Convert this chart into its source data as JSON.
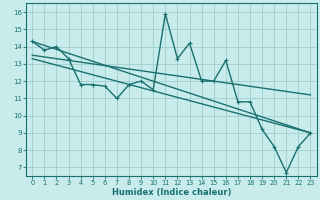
{
  "xlabel": "Humidex (Indice chaleur)",
  "xlim": [
    -0.5,
    23.5
  ],
  "ylim": [
    6.5,
    16.5
  ],
  "yticks": [
    7,
    8,
    9,
    10,
    11,
    12,
    13,
    14,
    15,
    16
  ],
  "xticks": [
    0,
    1,
    2,
    3,
    4,
    5,
    6,
    7,
    8,
    9,
    10,
    11,
    12,
    13,
    14,
    15,
    16,
    17,
    18,
    19,
    20,
    21,
    22,
    23
  ],
  "bg_color": "#c8ecec",
  "grid_color": "#a0cece",
  "line_color": "#1a7070",
  "data_x": [
    0,
    1,
    2,
    3,
    4,
    5,
    6,
    7,
    8,
    9,
    10,
    11,
    12,
    13,
    14,
    15,
    16,
    17,
    18,
    19,
    20,
    21,
    22,
    23
  ],
  "data_y": [
    14.3,
    13.8,
    14.0,
    13.3,
    11.8,
    11.8,
    11.7,
    11.0,
    11.8,
    12.0,
    11.5,
    15.9,
    13.3,
    14.2,
    12.0,
    12.0,
    13.2,
    10.8,
    10.8,
    9.2,
    8.2,
    6.7,
    8.2,
    9.0
  ],
  "trend_lines": [
    {
      "x0": 0,
      "y0": 14.3,
      "x1": 23,
      "y1": 9.0
    },
    {
      "x0": 0,
      "y0": 13.5,
      "x1": 23,
      "y1": 11.2
    },
    {
      "x0": 0,
      "y0": 13.3,
      "x1": 23,
      "y1": 9.0
    }
  ]
}
